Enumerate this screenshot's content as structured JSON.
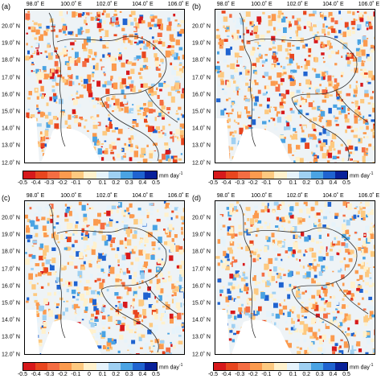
{
  "panels": [
    {
      "label": "(a)"
    },
    {
      "label": "(b)"
    },
    {
      "label": "(c)"
    },
    {
      "label": "(d)"
    }
  ],
  "lon_ticks": [
    "98.0˚ E",
    "100.0˚ E",
    "102.0˚ E",
    "104.0˚ E",
    "106.0˚ E"
  ],
  "lat_ticks": [
    "20.0˚ N",
    "19.0˚ N",
    "18.0˚ N",
    "17.0˚ N",
    "16.0˚ N",
    "15.0˚ N",
    "14.0˚ N",
    "13.0˚ N",
    "12.0˚ N"
  ],
  "colorbar": {
    "ticks": [
      "-0.5",
      "-0.4",
      "-0.3",
      "-0.2",
      "-0.1",
      "0",
      "0.1",
      "0.2",
      "0.3",
      "0.4",
      "0.5"
    ],
    "unit_text": "mm day",
    "unit_exp": "-1",
    "colors": [
      "#d7191c",
      "#e8461f",
      "#f46d43",
      "#fb9a4e",
      "#fdc980",
      "#fff1cc",
      "#e6f3fb",
      "#9fd0f2",
      "#4aa3e3",
      "#1f63d0",
      "#08219a"
    ]
  }
}
